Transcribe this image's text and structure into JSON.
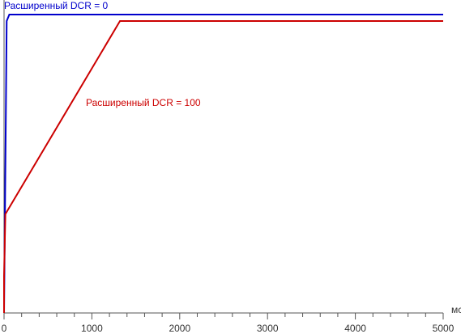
{
  "chart_data": {
    "type": "line",
    "x_label": "мс",
    "series": [
      {
        "name": "Расширенный DCR = 0",
        "color": "#0000cc",
        "x": [
          0,
          30,
          60,
          5000
        ],
        "values": [
          0,
          94.5,
          96.6,
          96.6
        ]
      },
      {
        "name": "Расширенный DCR = 100",
        "color": "#cc0000",
        "x": [
          0,
          0,
          15,
          1320,
          5000
        ],
        "values": [
          0,
          12,
          32,
          94.5,
          94.5
        ]
      }
    ],
    "xlim": [
      0,
      5000
    ],
    "xticks": [
      0,
      1000,
      2000,
      3000,
      4000,
      5000
    ],
    "xminorticks": [
      200,
      400,
      600,
      800,
      1200,
      1400,
      1600,
      1800,
      2200,
      2400,
      2600,
      2800,
      3200,
      3400,
      3600,
      3800,
      4200,
      4400,
      4600,
      4800
    ],
    "ylim": [
      0,
      100
    ]
  }
}
